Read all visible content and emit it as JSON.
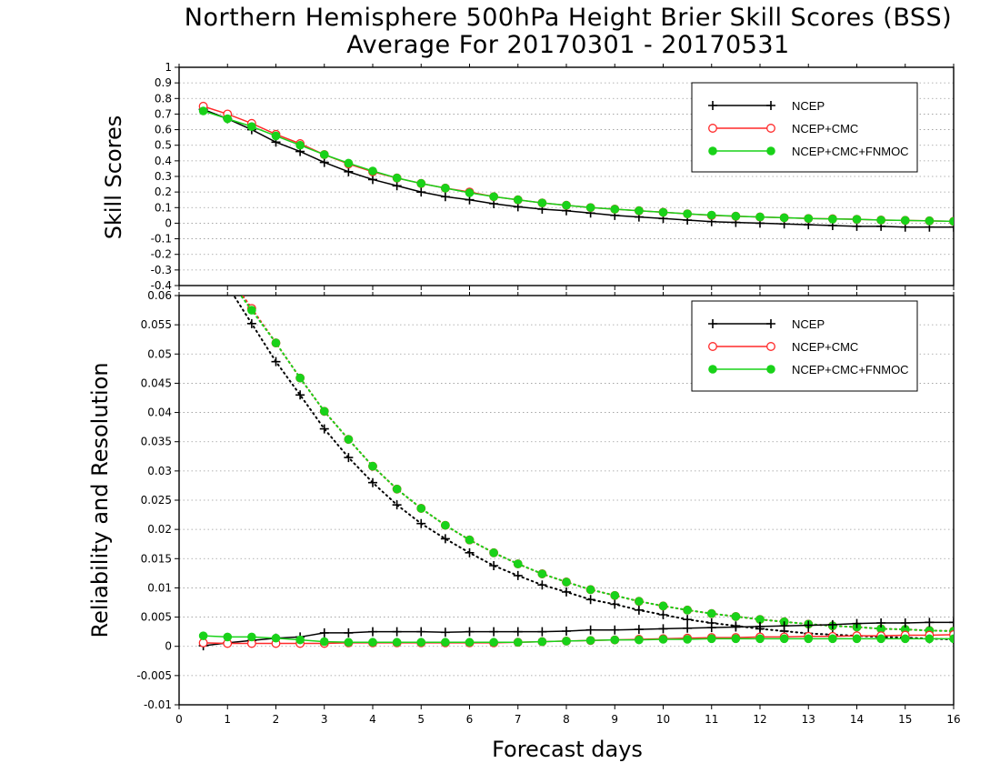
{
  "title_line1": "Northern Hemisphere 500hPa Height Brier Skill Scores (BSS)",
  "title_line2": "Average For 20170301 - 20170531",
  "colors": {
    "NCEP": "#000000",
    "NCEP+CMC": "#ff2a2a",
    "NCEP+CMC+FNMOC": "#19d219"
  },
  "chart_data": [
    {
      "type": "line",
      "ylabel": "Skill Scores",
      "xlabel": "",
      "xlim": [
        0,
        16
      ],
      "ylim": [
        -0.4,
        1
      ],
      "yticks": [
        "1",
        "0.9",
        "0.8",
        "0.7",
        "0.6",
        "0.5",
        "0.4",
        "0.3",
        "0.2",
        "0.1",
        "0",
        "-0.1",
        "-0.2",
        "-0.3",
        "-0.4"
      ],
      "grid": true,
      "legend": "top-right",
      "x": [
        0.5,
        1,
        1.5,
        2,
        2.5,
        3,
        3.5,
        4,
        4.5,
        5,
        5.5,
        6,
        6.5,
        7,
        7.5,
        8,
        8.5,
        9,
        9.5,
        10,
        10.5,
        11,
        11.5,
        12,
        12.5,
        13,
        13.5,
        14,
        14.5,
        15,
        15.5,
        16
      ],
      "series": [
        {
          "name": "NCEP",
          "marker": "plus",
          "values": [
            0.73,
            0.67,
            0.6,
            0.52,
            0.46,
            0.39,
            0.33,
            0.28,
            0.24,
            0.2,
            0.17,
            0.15,
            0.125,
            0.105,
            0.09,
            0.08,
            0.065,
            0.05,
            0.04,
            0.03,
            0.02,
            0.01,
            0.005,
            0,
            -0.005,
            -0.01,
            -0.015,
            -0.02,
            -0.02,
            -0.025,
            -0.025,
            -0.025
          ]
        },
        {
          "name": "NCEP+CMC",
          "marker": "open-circle",
          "values": [
            0.75,
            0.7,
            0.64,
            0.57,
            0.51,
            0.44,
            0.38,
            0.33,
            0.29,
            0.255,
            0.225,
            0.2,
            0.17,
            0.15,
            0.13,
            0.115,
            0.1,
            0.09,
            0.08,
            0.07,
            0.06,
            0.05,
            0.045,
            0.04,
            0.035,
            0.03,
            0.028,
            0.025,
            0.02,
            0.018,
            0.015,
            0.012
          ]
        },
        {
          "name": "NCEP+CMC+FNMOC",
          "marker": "filled-circle",
          "values": [
            0.72,
            0.67,
            0.62,
            0.56,
            0.5,
            0.44,
            0.385,
            0.335,
            0.29,
            0.255,
            0.225,
            0.195,
            0.17,
            0.15,
            0.13,
            0.115,
            0.1,
            0.09,
            0.08,
            0.07,
            0.06,
            0.052,
            0.045,
            0.04,
            0.035,
            0.03,
            0.027,
            0.025,
            0.02,
            0.018,
            0.015,
            0.012
          ]
        }
      ]
    },
    {
      "type": "line",
      "ylabel": "Reliability and Resolution",
      "xlabel": "Forecast days",
      "xlim": [
        0,
        16
      ],
      "ylim": [
        -0.01,
        0.06
      ],
      "yticks": [
        "0.06",
        "0.055",
        "0.05",
        "0.045",
        "0.04",
        "0.035",
        "0.03",
        "0.025",
        "0.02",
        "0.015",
        "0.01",
        "0.005",
        "0",
        "-0.005",
        "-0.01"
      ],
      "xticks": [
        "0",
        "1",
        "2",
        "3",
        "4",
        "5",
        "6",
        "7",
        "8",
        "9",
        "10",
        "11",
        "12",
        "13",
        "14",
        "15",
        "16"
      ],
      "grid": true,
      "legend": "top-right",
      "x": [
        0.5,
        1,
        1.5,
        2,
        2.5,
        3,
        3.5,
        4,
        4.5,
        5,
        5.5,
        6,
        6.5,
        7,
        7.5,
        8,
        8.5,
        9,
        9.5,
        10,
        10.5,
        11,
        11.5,
        12,
        12.5,
        13,
        13.5,
        14,
        14.5,
        15,
        15.5,
        16
      ],
      "series": [
        {
          "name": "NCEP",
          "metric": "resolution",
          "line": "dotted",
          "marker": "plus",
          "values": [
            null,
            null,
            0.0552,
            0.0487,
            0.043,
            0.0372,
            0.0323,
            0.028,
            0.0242,
            0.021,
            0.0184,
            0.016,
            0.0138,
            0.0121,
            0.0105,
            0.0093,
            0.008,
            0.0072,
            0.0062,
            0.0054,
            0.0046,
            0.004,
            0.0035,
            0.003,
            0.0026,
            0.0022,
            0.002,
            0.0018,
            0.0016,
            0.0015,
            0.0013,
            0.0012
          ]
        },
        {
          "name": "NCEP+CMC",
          "metric": "resolution",
          "line": "dotted",
          "marker": "open-circle",
          "values": [
            null,
            null,
            0.0578,
            0.0519,
            0.0459,
            0.0402,
            0.0354,
            0.0308,
            0.0269,
            0.0236,
            0.0207,
            0.0182,
            0.016,
            0.0141,
            0.0124,
            0.011,
            0.0097,
            0.0087,
            0.0077,
            0.0069,
            0.0062,
            0.0056,
            0.0051,
            0.0046,
            0.0042,
            0.0038,
            0.0035,
            0.0033,
            0.003,
            0.0029,
            0.0027,
            0.0026
          ]
        },
        {
          "name": "NCEP+CMC+FNMOC",
          "metric": "resolution",
          "line": "dotted",
          "marker": "filled-circle",
          "values": [
            null,
            null,
            0.0575,
            0.0519,
            0.0459,
            0.0402,
            0.0354,
            0.0308,
            0.0269,
            0.0236,
            0.0207,
            0.0182,
            0.016,
            0.0141,
            0.0124,
            0.011,
            0.0097,
            0.0087,
            0.0077,
            0.0069,
            0.0062,
            0.0056,
            0.0051,
            0.0046,
            0.0042,
            0.0038,
            0.0035,
            0.0033,
            0.003,
            0.0029,
            0.0027,
            0.0026
          ]
        },
        {
          "name": "NCEP",
          "metric": "reliability",
          "line": "solid",
          "marker": "plus",
          "values": [
            0.0001,
            0.0006,
            0.001,
            0.0014,
            0.0016,
            0.0023,
            0.0023,
            0.0025,
            0.0025,
            0.0025,
            0.0024,
            0.0025,
            0.0025,
            0.0025,
            0.0025,
            0.0026,
            0.0028,
            0.0028,
            0.0029,
            0.003,
            0.0031,
            0.0032,
            0.0033,
            0.0034,
            0.0035,
            0.0036,
            0.0037,
            0.0039,
            0.004,
            0.004,
            0.0041,
            0.0041
          ]
        },
        {
          "name": "NCEP+CMC",
          "metric": "reliability",
          "line": "solid",
          "marker": "open-circle",
          "values": [
            0.0006,
            0.0005,
            0.0005,
            0.0005,
            0.0005,
            0.0005,
            0.0006,
            0.0006,
            0.0006,
            0.0006,
            0.0006,
            0.0006,
            0.0006,
            0.0007,
            0.0008,
            0.0009,
            0.001,
            0.0011,
            0.0012,
            0.0013,
            0.0014,
            0.0015,
            0.0015,
            0.0016,
            0.0016,
            0.0017,
            0.0017,
            0.0018,
            0.0018,
            0.0019,
            0.0019,
            0.002
          ]
        },
        {
          "name": "NCEP+CMC+FNMOC",
          "metric": "reliability",
          "line": "solid",
          "marker": "filled-circle",
          "values": [
            0.0018,
            0.0016,
            0.0016,
            0.0014,
            0.0011,
            0.0008,
            0.0007,
            0.0007,
            0.0007,
            0.0007,
            0.0007,
            0.0007,
            0.0007,
            0.0007,
            0.0008,
            0.0009,
            0.001,
            0.0011,
            0.0011,
            0.0012,
            0.0012,
            0.0013,
            0.0013,
            0.0013,
            0.0013,
            0.0013,
            0.0013,
            0.0013,
            0.0013,
            0.0013,
            0.0013,
            0.0013
          ]
        }
      ]
    }
  ]
}
